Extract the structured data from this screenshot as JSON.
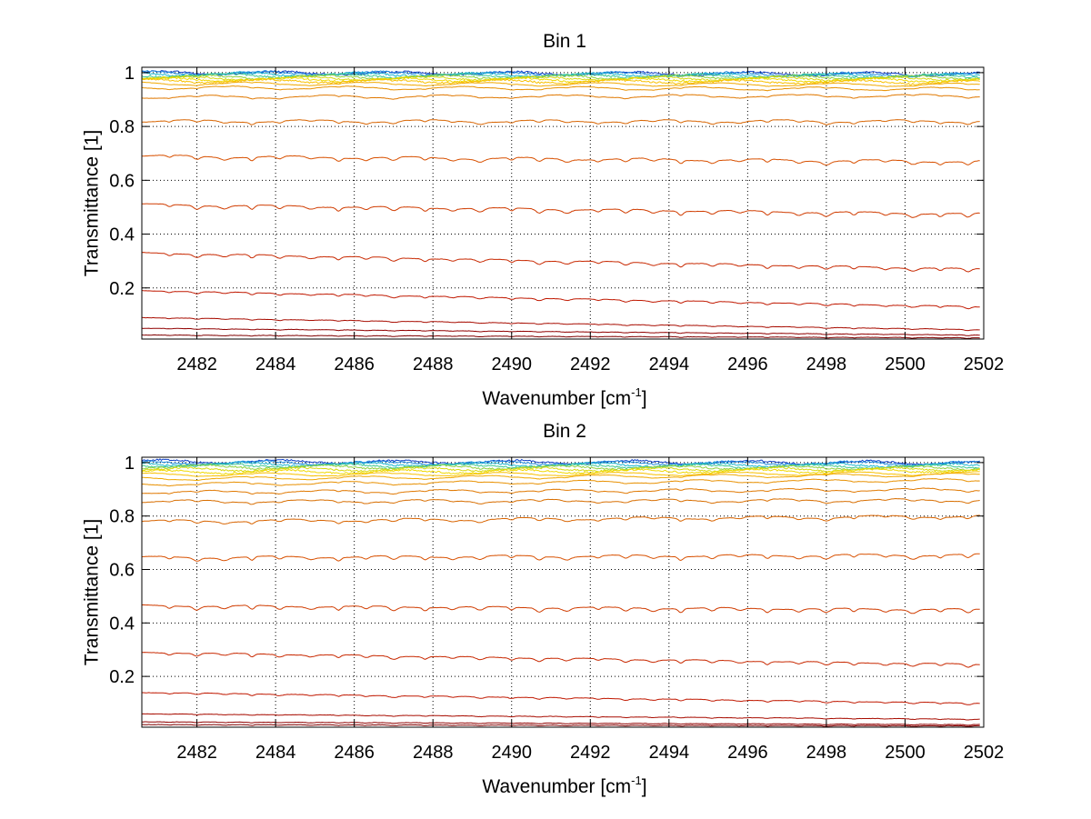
{
  "chart_data": [
    {
      "type": "line",
      "title": "Bin 1",
      "xlabel_prefix": "Wavenumber [cm",
      "xlabel_sup": "-1",
      "xlabel_suffix": "]",
      "ylabel": "Transmittance [1]",
      "xlim": [
        2480.6,
        2502.0
      ],
      "ylim": [
        0.01,
        1.02
      ],
      "xticks": [
        2482,
        2484,
        2486,
        2488,
        2490,
        2492,
        2494,
        2496,
        2498,
        2500,
        2502
      ],
      "xtick_labels": [
        "2482",
        "2484",
        "2486",
        "2488",
        "2490",
        "2492",
        "2494",
        "2496",
        "2498",
        "2500",
        "2502"
      ],
      "yticks": [
        0.2,
        0.4,
        0.6,
        0.8,
        1
      ],
      "ytick_labels": [
        "0.2",
        "0.4",
        "0.6",
        "0.8",
        "1"
      ],
      "grid": true,
      "absorption_lines": [
        2481.3,
        2482.0,
        2482.7,
        2483.4,
        2484.1,
        2484.9,
        2485.6,
        2486.3,
        2487.0,
        2487.8,
        2488.5,
        2489.2,
        2490.0,
        2490.7,
        2491.4,
        2492.2,
        2492.9,
        2493.6,
        2494.3,
        2495.1,
        2495.8,
        2496.5,
        2497.3,
        2498.0,
        2498.7,
        2499.5,
        2500.2,
        2500.9,
        2501.6
      ],
      "series": [
        {
          "start": 1.0,
          "end": 0.995,
          "color": "#1040c8"
        },
        {
          "start": 1.0,
          "end": 0.993,
          "color": "#1e8be0"
        },
        {
          "start": 0.995,
          "end": 0.99,
          "color": "#20b8d0"
        },
        {
          "start": 0.99,
          "end": 0.987,
          "color": "#40c890"
        },
        {
          "start": 0.985,
          "end": 0.983,
          "color": "#90d040"
        },
        {
          "start": 0.98,
          "end": 0.978,
          "color": "#d8d810"
        },
        {
          "start": 0.975,
          "end": 0.972,
          "color": "#f0d800"
        },
        {
          "start": 0.97,
          "end": 0.965,
          "color": "#f8c000"
        },
        {
          "start": 0.96,
          "end": 0.955,
          "color": "#f0a800"
        },
        {
          "start": 0.945,
          "end": 0.94,
          "color": "#e89000"
        },
        {
          "start": 0.91,
          "end": 0.915,
          "color": "#e07800"
        },
        {
          "start": 0.82,
          "end": 0.82,
          "color": "#d86400"
        },
        {
          "start": 0.69,
          "end": 0.67,
          "color": "#d85000"
        },
        {
          "start": 0.51,
          "end": 0.475,
          "color": "#d03c00"
        },
        {
          "start": 0.33,
          "end": 0.27,
          "color": "#c82800"
        },
        {
          "start": 0.19,
          "end": 0.13,
          "color": "#c01800"
        },
        {
          "start": 0.09,
          "end": 0.045,
          "color": "#a80c00"
        },
        {
          "start": 0.05,
          "end": 0.025,
          "color": "#900000"
        },
        {
          "start": 0.025,
          "end": 0.015,
          "color": "#800000"
        }
      ]
    },
    {
      "type": "line",
      "title": "Bin 2",
      "xlabel_prefix": "Wavenumber [cm",
      "xlabel_sup": "-1",
      "xlabel_suffix": "]",
      "ylabel": "Transmittance [1]",
      "xlim": [
        2480.6,
        2502.0
      ],
      "ylim": [
        0.01,
        1.02
      ],
      "xticks": [
        2482,
        2484,
        2486,
        2488,
        2490,
        2492,
        2494,
        2496,
        2498,
        2500,
        2502
      ],
      "xtick_labels": [
        "2482",
        "2484",
        "2486",
        "2488",
        "2490",
        "2492",
        "2494",
        "2496",
        "2498",
        "2500",
        "2502"
      ],
      "yticks": [
        0.2,
        0.4,
        0.6,
        0.8,
        1
      ],
      "ytick_labels": [
        "0.2",
        "0.4",
        "0.6",
        "0.8",
        "1"
      ],
      "grid": true,
      "absorption_lines": [
        2481.3,
        2482.0,
        2482.7,
        2483.4,
        2484.1,
        2484.9,
        2485.6,
        2486.3,
        2487.0,
        2487.8,
        2488.5,
        2489.2,
        2490.0,
        2490.7,
        2491.4,
        2492.2,
        2492.9,
        2493.6,
        2494.3,
        2495.1,
        2495.8,
        2496.5,
        2497.3,
        2498.0,
        2498.7,
        2499.5,
        2500.2,
        2500.9,
        2501.6
      ],
      "series": [
        {
          "start": 1.005,
          "end": 1.0,
          "color": "#1040c8"
        },
        {
          "start": 1.0,
          "end": 0.998,
          "color": "#1e8be0"
        },
        {
          "start": 0.995,
          "end": 0.99,
          "color": "#20b8d0"
        },
        {
          "start": 0.99,
          "end": 0.985,
          "color": "#40c890"
        },
        {
          "start": 0.985,
          "end": 0.98,
          "color": "#90d040"
        },
        {
          "start": 0.975,
          "end": 0.975,
          "color": "#d8d810"
        },
        {
          "start": 0.965,
          "end": 0.97,
          "color": "#f0d800"
        },
        {
          "start": 0.955,
          "end": 0.96,
          "color": "#f8c000"
        },
        {
          "start": 0.94,
          "end": 0.955,
          "color": "#f0a800"
        },
        {
          "start": 0.92,
          "end": 0.935,
          "color": "#e89000"
        },
        {
          "start": 0.89,
          "end": 0.9,
          "color": "#e07800"
        },
        {
          "start": 0.855,
          "end": 0.86,
          "color": "#d86e00"
        },
        {
          "start": 0.78,
          "end": 0.8,
          "color": "#d86400"
        },
        {
          "start": 0.645,
          "end": 0.655,
          "color": "#d85000"
        },
        {
          "start": 0.465,
          "end": 0.45,
          "color": "#d03c00"
        },
        {
          "start": 0.29,
          "end": 0.245,
          "color": "#c82800"
        },
        {
          "start": 0.14,
          "end": 0.1,
          "color": "#c01800"
        },
        {
          "start": 0.06,
          "end": 0.04,
          "color": "#a80c00"
        },
        {
          "start": 0.03,
          "end": 0.02,
          "color": "#900000"
        },
        {
          "start": 0.02,
          "end": 0.015,
          "color": "#800000"
        }
      ]
    }
  ]
}
